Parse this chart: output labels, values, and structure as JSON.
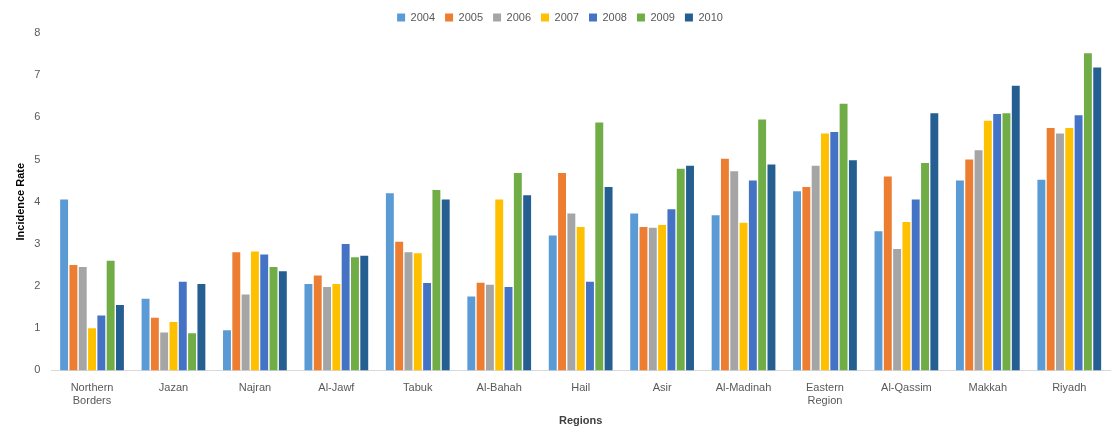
{
  "chart_data": {
    "type": "bar",
    "xlabel": "Regions",
    "ylabel": "Incidence Rate",
    "categories": [
      "Northern Borders",
      "Jazan",
      "Najran",
      "Al-Jawf",
      "Tabuk",
      "Al-Bahah",
      "Hail",
      "Asir",
      "Al-Madinah",
      "Eastern Region",
      "Al-Qassim",
      "Makkah",
      "Riyadh"
    ],
    "series": [
      {
        "name": "2004",
        "color": "#5b9bd5",
        "values": [
          4.05,
          1.7,
          0.95,
          2.05,
          4.2,
          1.75,
          3.2,
          3.72,
          3.68,
          4.25,
          3.3,
          4.5,
          4.52
        ]
      },
      {
        "name": "2005",
        "color": "#ed7d31",
        "values": [
          2.5,
          1.25,
          2.8,
          2.25,
          3.05,
          2.08,
          4.68,
          3.4,
          5.02,
          4.35,
          4.6,
          5.0,
          5.75
        ]
      },
      {
        "name": "2006",
        "color": "#a5a5a5",
        "values": [
          2.45,
          0.9,
          1.8,
          1.98,
          2.8,
          2.03,
          3.72,
          3.38,
          4.72,
          4.85,
          2.88,
          5.22,
          5.62
        ]
      },
      {
        "name": "2007",
        "color": "#ffc000",
        "values": [
          1.0,
          1.15,
          2.82,
          2.05,
          2.78,
          4.05,
          3.4,
          3.45,
          3.5,
          5.62,
          3.52,
          5.92,
          5.75
        ]
      },
      {
        "name": "2008",
        "color": "#4472c4",
        "values": [
          1.3,
          2.1,
          2.75,
          3.0,
          2.07,
          1.98,
          2.1,
          3.82,
          4.5,
          5.65,
          4.05,
          6.08,
          6.05
        ]
      },
      {
        "name": "2009",
        "color": "#70ad47",
        "values": [
          2.6,
          0.88,
          2.45,
          2.68,
          4.28,
          4.68,
          5.88,
          4.78,
          5.95,
          6.32,
          4.92,
          6.1,
          7.52
        ]
      },
      {
        "name": "2010",
        "color": "#255e91",
        "values": [
          1.55,
          2.05,
          2.35,
          2.72,
          4.05,
          4.15,
          4.35,
          4.85,
          4.88,
          4.98,
          6.1,
          6.75,
          7.18
        ]
      }
    ],
    "ylim": [
      0,
      8
    ],
    "yticks": [
      0,
      1,
      2,
      3,
      4,
      5,
      6,
      7,
      8
    ],
    "grid": false,
    "legend": "top"
  }
}
